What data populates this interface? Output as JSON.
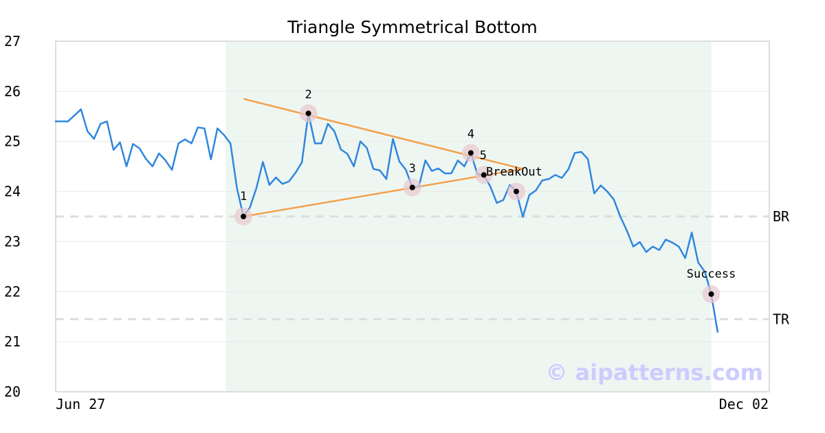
{
  "chart_data": {
    "type": "line",
    "title": "Triangle Symmetrical Bottom",
    "xlabel": "",
    "ylabel": "",
    "ylim": [
      20,
      27
    ],
    "yticks": [
      20,
      21,
      22,
      23,
      24,
      25,
      26,
      27
    ],
    "x_tick_labels": [
      "Jun 27",
      "Dec 02"
    ],
    "grid": "horizontal",
    "colors": {
      "price": "#2e86de",
      "trendline": "#f4a04a",
      "shade": "#eef6f2",
      "marker_halo": "#e8c9cf",
      "reference": "#dddddd",
      "frame": "#dddddd",
      "watermark": "#ccccff"
    },
    "series": [
      {
        "values": [
          25.4,
          25.4,
          25.4,
          25.52,
          25.64,
          25.2,
          25.05,
          25.35,
          25.4,
          24.83,
          24.98,
          24.5,
          24.95,
          24.86,
          24.65,
          24.5,
          24.76,
          24.62,
          24.43,
          24.96,
          25.04,
          24.96,
          25.28,
          25.26,
          24.64,
          25.26,
          25.13,
          24.96,
          24.07,
          23.5,
          23.68,
          24.07,
          24.59,
          24.13,
          24.28,
          24.15,
          24.2,
          24.37,
          24.58,
          25.56,
          24.96,
          24.96,
          25.35,
          25.2,
          24.84,
          24.75,
          24.5,
          25.0,
          24.87,
          24.45,
          24.42,
          24.25,
          25.05,
          24.6,
          24.43,
          24.08,
          24.1,
          24.62,
          24.41,
          24.46,
          24.36,
          24.36,
          24.62,
          24.5,
          24.77,
          24.35,
          24.32,
          24.1,
          23.77,
          23.83,
          24.13,
          24.0,
          23.49,
          23.93,
          24.02,
          24.22,
          24.25,
          24.33,
          24.27,
          24.44,
          24.77,
          24.79,
          24.65,
          23.96,
          24.12,
          24.0,
          23.84,
          23.5,
          23.22,
          22.9,
          22.99,
          22.79,
          22.9,
          22.83,
          23.04,
          22.98,
          22.9,
          22.67,
          23.18,
          22.58,
          22.4,
          21.95,
          21.18
        ]
      }
    ],
    "trendlines": [
      {
        "from": {
          "index": 29,
          "value": 23.5
        },
        "to": {
          "index": 72,
          "value": 24.45
        }
      },
      {
        "from": {
          "index": 29,
          "value": 25.85
        },
        "to": {
          "index": 72,
          "value": 24.45
        }
      }
    ],
    "pattern_points": [
      {
        "label": "1",
        "index": 29,
        "value": 23.5
      },
      {
        "label": "2",
        "index": 39,
        "value": 25.56
      },
      {
        "label": "3",
        "index": 55,
        "value": 24.08
      },
      {
        "label": "4",
        "index": 64,
        "value": 24.77
      },
      {
        "label": "5",
        "index": 66,
        "value": 24.33
      },
      {
        "label": "BreakOut",
        "index": 71,
        "value": 24.0
      },
      {
        "label": "Success",
        "index": 101,
        "value": 21.95
      }
    ],
    "pattern_range": {
      "start_index": 27,
      "end_index": 101
    },
    "reference_lines": [
      {
        "label": "BR",
        "value": 23.5
      },
      {
        "label": "TR",
        "value": 21.45
      }
    ],
    "watermark": "© aipatterns.com"
  }
}
